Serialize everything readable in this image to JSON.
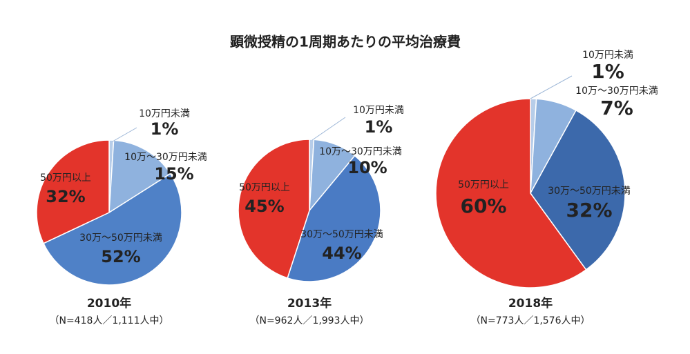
{
  "title": "顕微授精の1周期あたりの平均治療費",
  "chart_data": [
    {
      "type": "pie",
      "title": "2010年",
      "subtitle": "（N=418人／1,111人中）",
      "categories": [
        "10万円未満",
        "10万～30万円未満",
        "30万～50万円未満",
        "50万円以上"
      ],
      "values": [
        1,
        15,
        52,
        32
      ],
      "value_labels": [
        "1%",
        "15%",
        "52%",
        "32%"
      ],
      "colors": [
        "#b7cde9",
        "#8fb2de",
        "#4f81c7",
        "#e3342b"
      ]
    },
    {
      "type": "pie",
      "title": "2013年",
      "subtitle": "（N=962人／1,993人中）",
      "categories": [
        "10万円未満",
        "10万～30万円未満",
        "30万～50万円未満",
        "50万円以上"
      ],
      "values": [
        1,
        10,
        44,
        45
      ],
      "value_labels": [
        "1%",
        "10%",
        "44%",
        "45%"
      ],
      "colors": [
        "#b7cde9",
        "#8fb2de",
        "#4a7bc4",
        "#e3342b"
      ]
    },
    {
      "type": "pie",
      "title": "2018年",
      "subtitle": "（N=773人／1,576人中）",
      "categories": [
        "10万円未満",
        "10万～30万円未満",
        "30万～50万円未満",
        "50万円以上"
      ],
      "values": [
        1,
        7,
        32,
        60
      ],
      "value_labels": [
        "1%",
        "7%",
        "32%",
        "60%"
      ],
      "colors": [
        "#b7cde9",
        "#8fb2de",
        "#3c69ab",
        "#e3342b"
      ]
    }
  ]
}
